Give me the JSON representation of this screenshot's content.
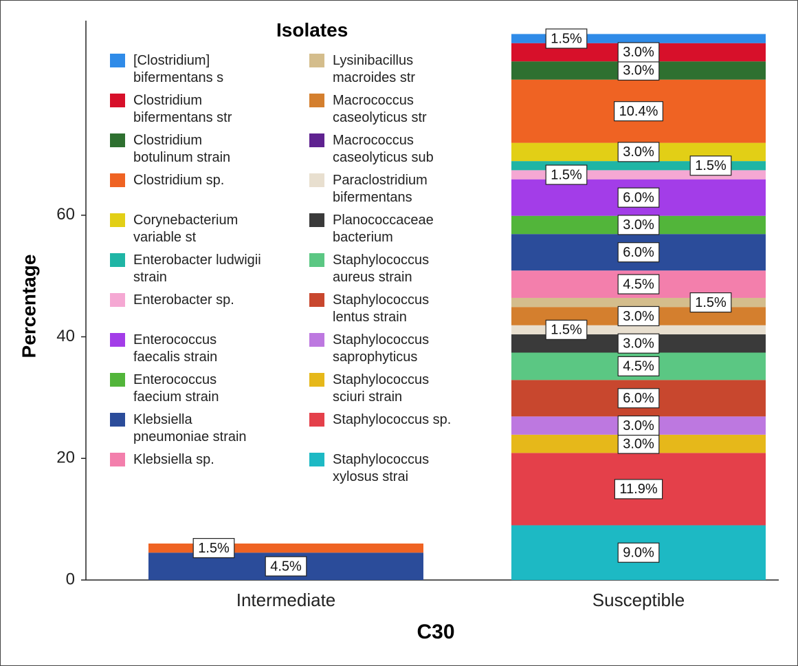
{
  "chart_data": {
    "type": "stacked_bar",
    "x_label": "C30",
    "y_label": "Percentage",
    "legend_title": "Isolates",
    "legend": "top-left",
    "categories": [
      "Intermediate",
      "Susceptible"
    ],
    "ylim": [
      0,
      92
    ],
    "yticks": [
      0,
      20,
      40,
      60
    ],
    "series": [
      {
        "name": "[Clostridium] bifermentans s",
        "color": "#2f8be8",
        "values": [
          null,
          1.5
        ],
        "value_labels": [
          null,
          "1.5%"
        ]
      },
      {
        "name": "Clostridium bifermentans str",
        "color": "#d7102a",
        "values": [
          null,
          3.0
        ],
        "value_labels": [
          null,
          "3.0%"
        ]
      },
      {
        "name": "Clostridium botulinum strain",
        "color": "#2e7030",
        "values": [
          null,
          3.0
        ],
        "value_labels": [
          null,
          "3.0%"
        ]
      },
      {
        "name": "Clostridium sp.",
        "color": "#ef6323",
        "values": [
          1.5,
          10.4
        ],
        "value_labels": [
          "1.5%",
          "10.4%"
        ]
      },
      {
        "name": "Corynebacterium variable st",
        "color": "#e2cf16",
        "values": [
          null,
          3.0
        ],
        "value_labels": [
          null,
          "3.0%"
        ]
      },
      {
        "name": "Enterobacter ludwigii strain",
        "color": "#1fb5a5",
        "values": [
          null,
          1.5
        ],
        "value_labels": [
          null,
          "1.5%"
        ]
      },
      {
        "name": "Enterobacter sp.",
        "color": "#f5a8d3",
        "values": [
          null,
          1.5
        ],
        "value_labels": [
          null,
          "1.5%"
        ]
      },
      {
        "name": "Enterococcus faecalis strain",
        "color": "#a33de8",
        "values": [
          null,
          6.0
        ],
        "value_labels": [
          null,
          "6.0%"
        ]
      },
      {
        "name": "Enterococcus faecium strain",
        "color": "#52b53a",
        "values": [
          null,
          3.0
        ],
        "value_labels": [
          null,
          "3.0%"
        ]
      },
      {
        "name": "Klebsiella pneumoniae strain",
        "color": "#2b4c9a",
        "values": [
          4.5,
          6.0
        ],
        "value_labels": [
          "4.5%",
          "6.0%"
        ]
      },
      {
        "name": "Klebsiella sp.",
        "color": "#f37fac",
        "values": [
          null,
          4.5
        ],
        "value_labels": [
          null,
          "4.5%"
        ]
      },
      {
        "name": "Lysinibacillus macroides str",
        "color": "#d4bd8c",
        "values": [
          null,
          1.5
        ],
        "value_labels": [
          null,
          "1.5%"
        ]
      },
      {
        "name": "Macrococcus caseolyticus str",
        "color": "#d47f2e",
        "values": [
          null,
          3.0
        ],
        "value_labels": [
          null,
          "3.0%"
        ]
      },
      {
        "name": "Macrococcus caseolyticus sub",
        "color": "#5f2290",
        "values": [
          null,
          null
        ],
        "value_labels": [
          null,
          null
        ]
      },
      {
        "name": "Paraclostridium bifermentans",
        "color": "#e8dfcf",
        "values": [
          null,
          1.5
        ],
        "value_labels": [
          null,
          "1.5%"
        ]
      },
      {
        "name": "Planococcaceae bacterium",
        "color": "#3a3a3a",
        "values": [
          null,
          3.0
        ],
        "value_labels": [
          null,
          "3.0%"
        ]
      },
      {
        "name": "Staphylococcus aureus strain",
        "color": "#5bc783",
        "values": [
          null,
          4.5
        ],
        "value_labels": [
          null,
          "4.5%"
        ]
      },
      {
        "name": "Staphylococcus lentus strain",
        "color": "#c8472e",
        "values": [
          null,
          6.0
        ],
        "value_labels": [
          null,
          "6.0%"
        ]
      },
      {
        "name": "Staphylococcus saprophyticus",
        "color": "#bd78e0",
        "values": [
          null,
          3.0
        ],
        "value_labels": [
          null,
          "3.0%"
        ]
      },
      {
        "name": "Staphylococcus sciuri strain",
        "color": "#e6b81a",
        "values": [
          null,
          3.0
        ],
        "value_labels": [
          null,
          "3.0%"
        ]
      },
      {
        "name": "Staphylococcus sp.",
        "color": "#e4404a",
        "values": [
          null,
          11.9
        ],
        "value_labels": [
          null,
          "11.9%"
        ]
      },
      {
        "name": "Staphylococcus xylosus strai",
        "color": "#1db9c4",
        "values": [
          null,
          9.0
        ],
        "value_labels": [
          null,
          "9.0%"
        ]
      }
    ]
  }
}
